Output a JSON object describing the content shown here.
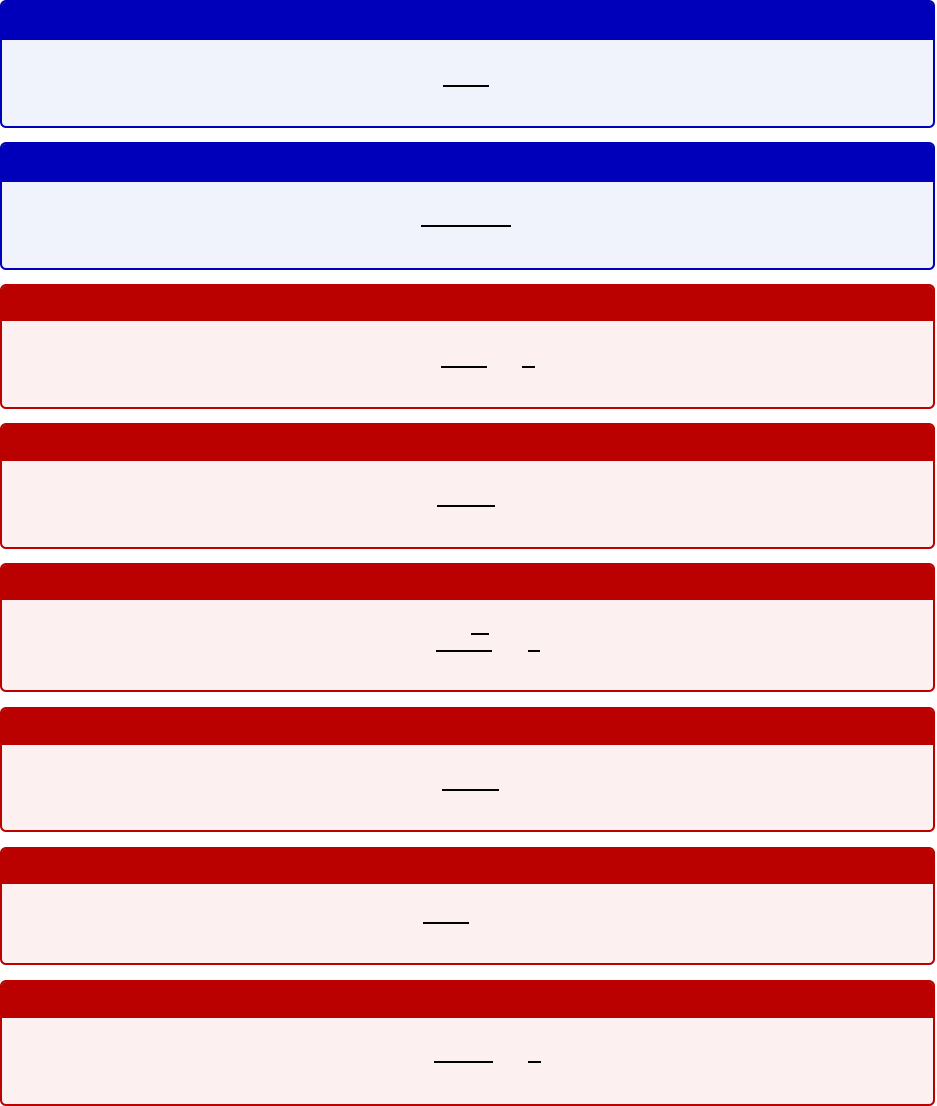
{
  "colors": {
    "blue_frame": "#0000BB",
    "blue_back": "#F0F2FC",
    "red_frame": "#BB0000",
    "red_back": "#FDF0F0",
    "fraction_bar": "#000000"
  },
  "boxes": [
    {
      "variant": "blue"
    },
    {
      "variant": "blue"
    },
    {
      "variant": "red"
    },
    {
      "variant": "red"
    },
    {
      "variant": "red"
    },
    {
      "variant": "red"
    },
    {
      "variant": "red"
    },
    {
      "variant": "red"
    }
  ]
}
